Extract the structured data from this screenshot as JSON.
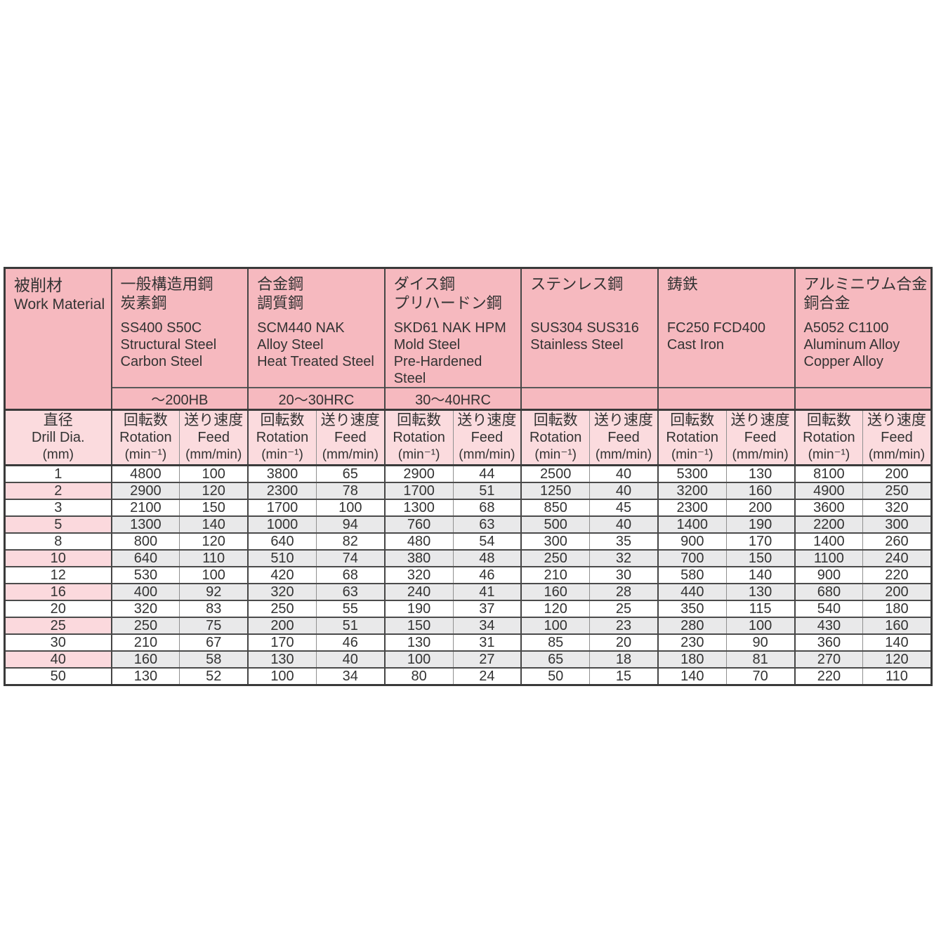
{
  "table": {
    "work_material": {
      "jp": "被削材",
      "en": "Work Material"
    },
    "materials": [
      {
        "jp": "一般構造用鋼\n炭素鋼",
        "en": "SS400 S50C\nStructural Steel\nCarbon Steel",
        "hardness": "～200HB"
      },
      {
        "jp": "合金鋼\n調質鋼",
        "en": "SCM440 NAK\nAlloy Steel\nHeat Treated Steel",
        "hardness": "20～30HRC"
      },
      {
        "jp": "ダイス鋼\nプリハードン鋼",
        "en": "SKD61 NAK HPM\nMold Steel\nPre-Hardened Steel",
        "hardness": "30～40HRC"
      },
      {
        "jp": "ステンレス鋼",
        "en": "SUS304 SUS316\nStainless Steel",
        "hardness": ""
      },
      {
        "jp": "鋳鉄",
        "en": "FC250  FCD400\nCast Iron",
        "hardness": ""
      },
      {
        "jp": "アルミニウム合金\n銅合金",
        "en": "A5052 C1100\nAluminum Alloy\nCopper Alloy",
        "hardness": ""
      }
    ],
    "dia_header": {
      "jp": "直径",
      "en": "Drill Dia.",
      "unit": "(mm)"
    },
    "col_headers": {
      "rotation": {
        "jp": "回転数",
        "en": "Rotation",
        "unit": "(min⁻¹)"
      },
      "feed": {
        "jp": "送り速度",
        "en": "Feed",
        "unit": "(mm/min)"
      }
    },
    "rows": [
      {
        "dia": "1",
        "values": [
          4800,
          100,
          3800,
          65,
          2900,
          44,
          2500,
          40,
          5300,
          130,
          8100,
          200
        ]
      },
      {
        "dia": "2",
        "values": [
          2900,
          120,
          2300,
          78,
          1700,
          51,
          1250,
          40,
          3200,
          160,
          4900,
          250
        ]
      },
      {
        "dia": "3",
        "values": [
          2100,
          150,
          1700,
          100,
          1300,
          68,
          850,
          45,
          2300,
          200,
          3600,
          320
        ]
      },
      {
        "dia": "5",
        "values": [
          1300,
          140,
          1000,
          94,
          760,
          63,
          500,
          40,
          1400,
          190,
          2200,
          300
        ]
      },
      {
        "dia": "8",
        "values": [
          800,
          120,
          640,
          82,
          480,
          54,
          300,
          35,
          900,
          170,
          1400,
          260
        ]
      },
      {
        "dia": "10",
        "values": [
          640,
          110,
          510,
          74,
          380,
          48,
          250,
          32,
          700,
          150,
          1100,
          240
        ]
      },
      {
        "dia": "12",
        "values": [
          530,
          100,
          420,
          68,
          320,
          46,
          210,
          30,
          580,
          140,
          900,
          220
        ]
      },
      {
        "dia": "16",
        "values": [
          400,
          92,
          320,
          63,
          240,
          41,
          160,
          28,
          440,
          130,
          680,
          200
        ]
      },
      {
        "dia": "20",
        "values": [
          320,
          83,
          250,
          55,
          190,
          37,
          120,
          25,
          350,
          115,
          540,
          180
        ]
      },
      {
        "dia": "25",
        "values": [
          250,
          75,
          200,
          51,
          150,
          34,
          100,
          23,
          280,
          100,
          430,
          160
        ]
      },
      {
        "dia": "30",
        "values": [
          210,
          67,
          170,
          46,
          130,
          31,
          85,
          20,
          230,
          90,
          360,
          140
        ]
      },
      {
        "dia": "40",
        "values": [
          160,
          58,
          130,
          40,
          100,
          27,
          65,
          18,
          180,
          81,
          270,
          120
        ]
      },
      {
        "dia": "50",
        "values": [
          130,
          52,
          100,
          34,
          80,
          24,
          50,
          15,
          140,
          70,
          220,
          110
        ]
      }
    ],
    "colors": {
      "header_pink": "#f6b9bf",
      "subheader_pink": "#fbdbde",
      "row_pink": "#fbd9dd",
      "row_gray": "#e9e9ea",
      "border_dark": "#3a3a3a",
      "border_light": "#909090"
    }
  }
}
